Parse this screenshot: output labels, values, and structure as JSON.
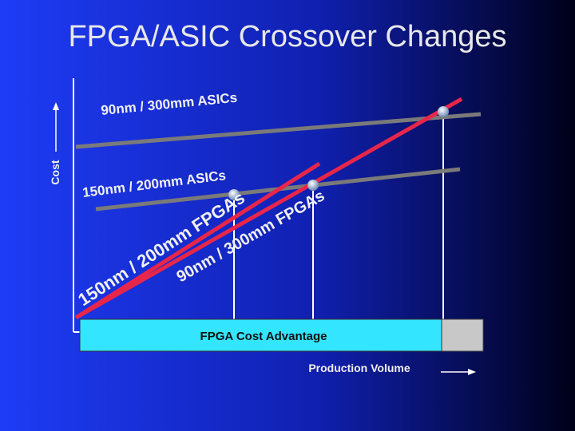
{
  "header": {
    "title": "FPGA/ASIC Crossover Changes"
  },
  "axes": {
    "y_label": "Cost",
    "x_label": "Production Volume"
  },
  "lines": [
    {
      "label": "90nm / 300mm ASICs"
    },
    {
      "label": "150nm / 200mm ASICs"
    },
    {
      "label": "150nm / 200mm FPGAs"
    },
    {
      "label": "90nm / 300mm FPGAs"
    }
  ],
  "advantage_box": {
    "label": "FPGA Cost Advantage"
  }
}
